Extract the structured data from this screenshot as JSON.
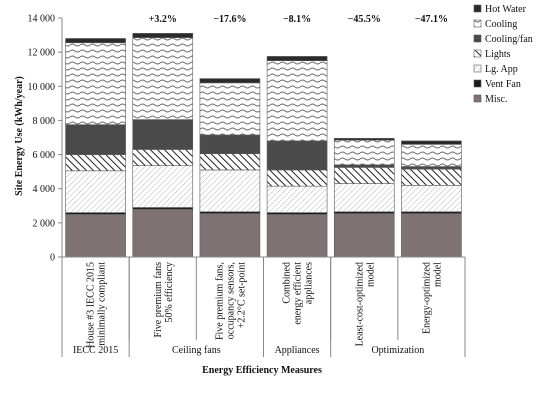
{
  "chart_data": {
    "type": "bar",
    "stacked": true,
    "ylabel": "Site Energy Use (kWh/year)",
    "xlabel": "Energy Efficiency Measures",
    "ylim": [
      0,
      14000
    ],
    "y_ticks": [
      0,
      2000,
      4000,
      6000,
      8000,
      10000,
      12000,
      14000
    ],
    "y_tick_labels": [
      "0",
      "2 000",
      "4 000",
      "6 000",
      "8 000",
      "10 000",
      "12 000",
      "14 000"
    ],
    "grid": false,
    "legend_position": "right",
    "categories": [
      "House #3 IECC 2015 minimally compliant",
      "Five premium fans 50% efficiency",
      "Five premium fans, occupancy sensors, +2.2°C set-point",
      "Combined energy efficient appliances",
      "Least-cost-optimized model",
      "Energy-optimized model"
    ],
    "category_lines": [
      [
        "House #3 IECC 2015",
        "minimally compliant"
      ],
      [
        "Five premium fans",
        "50% efficiency"
      ],
      [
        "Five premium fans,",
        "occupancy sensors,",
        "+2.2°C set-point"
      ],
      [
        "Combined",
        "energy efficient",
        "appliances"
      ],
      [
        "Least-cost-optimized",
        "model"
      ],
      [
        "Energy-optimized",
        "model"
      ]
    ],
    "groups": [
      {
        "label": "IECC 2015",
        "members": [
          0
        ]
      },
      {
        "label": "Ceiling fans",
        "members": [
          1,
          2
        ]
      },
      {
        "label": "Appliances",
        "members": [
          3
        ]
      },
      {
        "label": "Optimization",
        "members": [
          4,
          5
        ]
      }
    ],
    "annotations": [
      "",
      "+3.2%",
      "−17.6%",
      "−8.1%",
      "−45.5%",
      "−47.1%"
    ],
    "series": [
      {
        "name": "Misc.",
        "color": "#7f7275",
        "pattern": "solid",
        "values": [
          2500,
          2800,
          2550,
          2500,
          2550,
          2550
        ]
      },
      {
        "name": "Vent Fan",
        "color": "#1a1a1a",
        "pattern": "solid",
        "values": [
          100,
          100,
          100,
          100,
          100,
          100
        ]
      },
      {
        "name": "Lg. App",
        "color": "#c8c8c8",
        "pattern": "diagonal-light",
        "values": [
          2450,
          2450,
          2450,
          1550,
          1650,
          1550
        ]
      },
      {
        "name": "Lights",
        "color": "#333333",
        "pattern": "diagonal-dark",
        "values": [
          950,
          950,
          950,
          950,
          950,
          950
        ]
      },
      {
        "name": "Cooling/fan",
        "color": "#4a4a4a",
        "pattern": "solid",
        "values": [
          1750,
          1750,
          1100,
          1700,
          150,
          150
        ]
      },
      {
        "name": "Cooling",
        "color": "#9a9a9a",
        "pattern": "wave",
        "values": [
          4800,
          4800,
          3050,
          4700,
          1450,
          1300
        ]
      },
      {
        "name": "Hot Water",
        "color": "#2a2a2a",
        "pattern": "solid",
        "values": [
          250,
          250,
          250,
          250,
          100,
          200
        ]
      }
    ],
    "legend_order": [
      "Hot Water",
      "Cooling",
      "Cooling/fan",
      "Lights",
      "Lg. App",
      "Vent Fan",
      "Misc."
    ]
  }
}
